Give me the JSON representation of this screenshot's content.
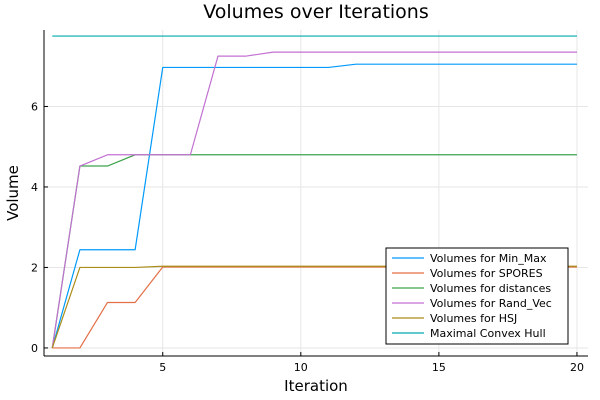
{
  "chart_data": {
    "type": "line",
    "title": "Volumes over Iterations",
    "xlabel": "Iteration",
    "ylabel": "Volume",
    "xlim": [
      0.7,
      20.4
    ],
    "ylim": [
      -0.2,
      7.9
    ],
    "xticks": [
      5,
      10,
      15,
      20
    ],
    "yticks": [
      0,
      2,
      4,
      6
    ],
    "grid": true,
    "legend_position": "bottom-right",
    "x": [
      1,
      2,
      3,
      4,
      5,
      6,
      7,
      8,
      9,
      10,
      11,
      12,
      13,
      14,
      15,
      16,
      17,
      18,
      19,
      20
    ],
    "series": [
      {
        "name": "Volumes for Min_Max",
        "color": "#009AFA",
        "values": [
          0,
          2.44,
          2.44,
          2.44,
          6.97,
          6.97,
          6.97,
          6.97,
          6.97,
          6.97,
          6.97,
          7.05,
          7.05,
          7.05,
          7.05,
          7.05,
          7.05,
          7.05,
          7.05,
          7.05
        ]
      },
      {
        "name": "Volumes for SPORES",
        "color": "#E36F47",
        "values": [
          0,
          0,
          1.13,
          1.13,
          2.01,
          2.01,
          2.01,
          2.01,
          2.01,
          2.01,
          2.01,
          2.01,
          2.01,
          2.01,
          2.01,
          2.01,
          2.01,
          2.01,
          2.01,
          2.01
        ]
      },
      {
        "name": "Volumes for distances",
        "color": "#3EA44E",
        "values": [
          0,
          4.52,
          4.52,
          4.8,
          4.8,
          4.8,
          4.8,
          4.8,
          4.8,
          4.8,
          4.8,
          4.8,
          4.8,
          4.8,
          4.8,
          4.8,
          4.8,
          4.8,
          4.8,
          4.8
        ]
      },
      {
        "name": "Volumes for Rand_Vec",
        "color": "#C271D2",
        "values": [
          0,
          4.52,
          4.8,
          4.8,
          4.8,
          4.8,
          7.25,
          7.25,
          7.35,
          7.35,
          7.35,
          7.35,
          7.35,
          7.35,
          7.35,
          7.35,
          7.35,
          7.35,
          7.35,
          7.35
        ]
      },
      {
        "name": "Volumes for HSJ",
        "color": "#AC8D18",
        "values": [
          0,
          2.0,
          2.0,
          2.0,
          2.03,
          2.03,
          2.03,
          2.03,
          2.03,
          2.03,
          2.03,
          2.03,
          2.03,
          2.03,
          2.03,
          2.03,
          2.03,
          2.03,
          2.03,
          2.03
        ]
      },
      {
        "name": "Maximal Convex Hull",
        "color": "#00A9AD",
        "values": [
          7.75,
          7.75,
          7.75,
          7.75,
          7.75,
          7.75,
          7.75,
          7.75,
          7.75,
          7.75,
          7.75,
          7.75,
          7.75,
          7.75,
          7.75,
          7.75,
          7.75,
          7.75,
          7.75,
          7.75
        ]
      }
    ]
  }
}
